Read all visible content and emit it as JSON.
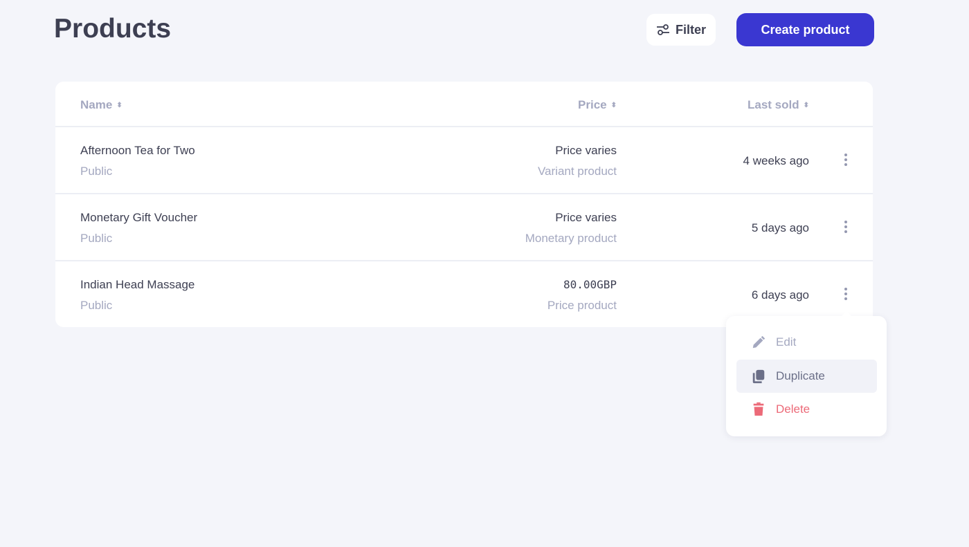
{
  "page": {
    "title": "Products"
  },
  "toolbar": {
    "filter_label": "Filter",
    "create_label": "Create product"
  },
  "table": {
    "columns": [
      "Name",
      "Price",
      "Last sold"
    ],
    "rows": [
      {
        "name": "Afternoon Tea for Two",
        "visibility": "Public",
        "price": "Price varies",
        "type": "Variant product",
        "last_sold": "4 weeks ago"
      },
      {
        "name": "Monetary Gift Voucher",
        "visibility": "Public",
        "price": "Price varies",
        "type": "Monetary product",
        "last_sold": "5 days ago"
      },
      {
        "name": "Indian Head Massage",
        "visibility": "Public",
        "price": "80.00GBP",
        "type": "Price product",
        "last_sold": "6 days ago"
      }
    ]
  },
  "menu": {
    "items": [
      {
        "label": "Edit",
        "color": "#a4a8c0"
      },
      {
        "label": "Duplicate",
        "color": "#6b6f88"
      },
      {
        "label": "Delete",
        "color": "#ec6a78"
      }
    ]
  },
  "colors": {
    "primary": "#3a37d1",
    "background": "#f4f5fa",
    "danger": "#ec6a78"
  }
}
